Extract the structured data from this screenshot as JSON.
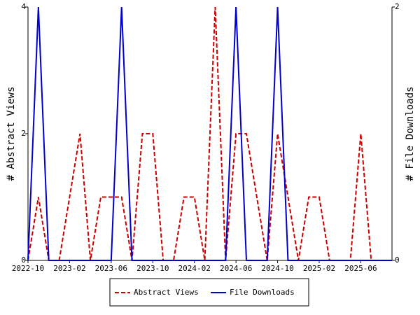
{
  "chart_data": {
    "type": "line",
    "categories": [
      "2022-10",
      null,
      null,
      null,
      "2023-02",
      null,
      null,
      null,
      "2023-06",
      null,
      null,
      null,
      "2023-10",
      null,
      null,
      null,
      "2024-02",
      null,
      null,
      null,
      "2024-06",
      null,
      null,
      null,
      "2024-10",
      null,
      null,
      null,
      "2025-02",
      null,
      null,
      null,
      "2025-06",
      null,
      null,
      null
    ],
    "series": [
      {
        "name": "Abstract Views",
        "color": "#cc0000",
        "dashed": true,
        "values": [
          0,
          1,
          0,
          0,
          1,
          2,
          0,
          1,
          1,
          1,
          0,
          2,
          2,
          0,
          0,
          1,
          1,
          0,
          4,
          0,
          2,
          2,
          1,
          0,
          2,
          1,
          0,
          1,
          1,
          0,
          0,
          0,
          2,
          0,
          0,
          0
        ]
      },
      {
        "name": "File Downloads",
        "color": "#0000cc",
        "dashed": false,
        "axis": "y2",
        "values": [
          0,
          2,
          0,
          0,
          0,
          0,
          0,
          0,
          0,
          2,
          0,
          0,
          0,
          0,
          0,
          0,
          0,
          0,
          0,
          0,
          2,
          0,
          0,
          0,
          2,
          0,
          0,
          0,
          0,
          0,
          0,
          0,
          0,
          0,
          0,
          0
        ]
      }
    ],
    "ylabel": "# Abstract Views",
    "y2label": "# File Downloads",
    "ylim": [
      0,
      4
    ],
    "yticks": [
      0,
      2,
      4
    ],
    "y2lim": [
      0,
      2
    ],
    "y2ticks": [
      0,
      2
    ],
    "legend": "bottom"
  }
}
